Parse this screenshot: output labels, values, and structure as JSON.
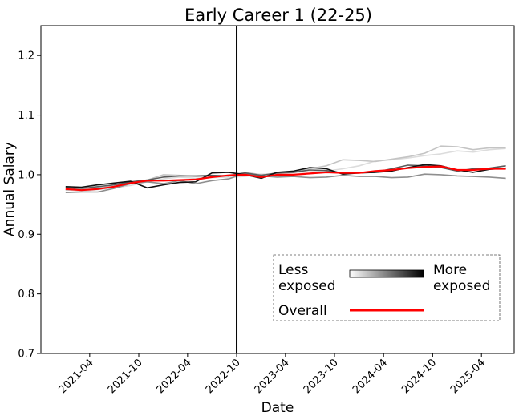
{
  "chart_data": {
    "type": "line",
    "title": "Early Career 1 (22-25)",
    "xlabel": "Date",
    "ylabel": "Annual Salary",
    "ylim": [
      0.7,
      1.25
    ],
    "yticks": [
      0.7,
      0.8,
      0.9,
      1.0,
      1.1,
      1.2
    ],
    "ytick_labels": [
      "0.7",
      "0.8",
      "0.9",
      "1.0",
      "1.1",
      "1.2"
    ],
    "xlim": [
      "2020-10-01",
      "2025-08-01"
    ],
    "xticks": [
      "2021-04-01",
      "2021-10-01",
      "2022-04-01",
      "2022-10-01",
      "2023-04-01",
      "2023-10-01",
      "2024-04-01",
      "2024-10-01",
      "2025-04-01"
    ],
    "xtick_labels": [
      "2021-04",
      "2021-10",
      "2022-04",
      "2022-10",
      "2023-04",
      "2023-10",
      "2024-04",
      "2024-10",
      "2025-04"
    ],
    "vline": "2022-10-01",
    "grid": false,
    "legend": {
      "placement": "lower-right",
      "gradient_left": "Less\nexposed",
      "gradient_right": "More\nexposed",
      "overall_label": "Overall"
    },
    "x_start": "2021-01-01",
    "x_step_months": 2,
    "series": [
      {
        "color": "#dcdcdc",
        "values": [
          0.975,
          0.972,
          0.975,
          0.978,
          0.982,
          0.988,
          0.993,
          0.996,
          0.994,
          0.995,
          0.996,
          0.997,
          1.001,
          1.0,
          1.004,
          1.005,
          1.006,
          1.01,
          1.015,
          1.023,
          1.025,
          1.028,
          1.032,
          1.035,
          1.04,
          1.038,
          1.042,
          1.044
        ]
      },
      {
        "color": "#c4c4c4",
        "values": [
          0.974,
          0.975,
          0.978,
          0.983,
          0.987,
          0.991,
          1.0,
          0.999,
          0.997,
          0.996,
          0.999,
          1.004,
          1.0,
          1.002,
          1.006,
          1.01,
          1.015,
          1.025,
          1.024,
          1.022,
          1.026,
          1.03,
          1.036,
          1.048,
          1.047,
          1.042,
          1.045,
          1.045
        ]
      },
      {
        "color": "#8f8f8f",
        "values": [
          0.97,
          0.971,
          0.971,
          0.977,
          0.985,
          0.988,
          0.985,
          0.99,
          0.985,
          0.99,
          0.993,
          1.002,
          0.998,
          0.996,
          0.997,
          0.995,
          0.996,
          0.999,
          0.997,
          0.997,
          0.995,
          0.996,
          1.001,
          1.0,
          0.998,
          0.997,
          0.996,
          0.994
        ]
      },
      {
        "color": "#5a5a5a",
        "values": [
          0.978,
          0.977,
          0.98,
          0.983,
          0.988,
          0.991,
          0.996,
          0.998,
          0.998,
          0.999,
          0.998,
          1.003,
          0.999,
          1.003,
          1.004,
          1.008,
          1.007,
          1.003,
          1.004,
          1.004,
          1.01,
          1.016,
          1.015,
          1.012,
          1.006,
          1.01,
          1.011,
          1.015
        ]
      },
      {
        "color": "#101010",
        "values": [
          0.98,
          0.979,
          0.983,
          0.986,
          0.989,
          0.978,
          0.983,
          0.987,
          0.988,
          1.003,
          1.004,
          1.0,
          0.994,
          1.004,
          1.006,
          1.012,
          1.01,
          1.001,
          1.003,
          1.004,
          1.006,
          1.012,
          1.017,
          1.015,
          1.008,
          1.004,
          1.009,
          1.011
        ]
      },
      {
        "color": "#ff0000",
        "overall": true,
        "values": [
          0.976,
          0.974,
          0.976,
          0.98,
          0.986,
          0.99,
          0.99,
          0.991,
          0.992,
          0.996,
          0.999,
          1.0,
          0.996,
          1.0,
          1.0,
          1.002,
          1.004,
          1.003,
          1.003,
          1.006,
          1.008,
          1.011,
          1.013,
          1.014,
          1.008,
          1.008,
          1.01,
          1.01
        ]
      }
    ]
  }
}
